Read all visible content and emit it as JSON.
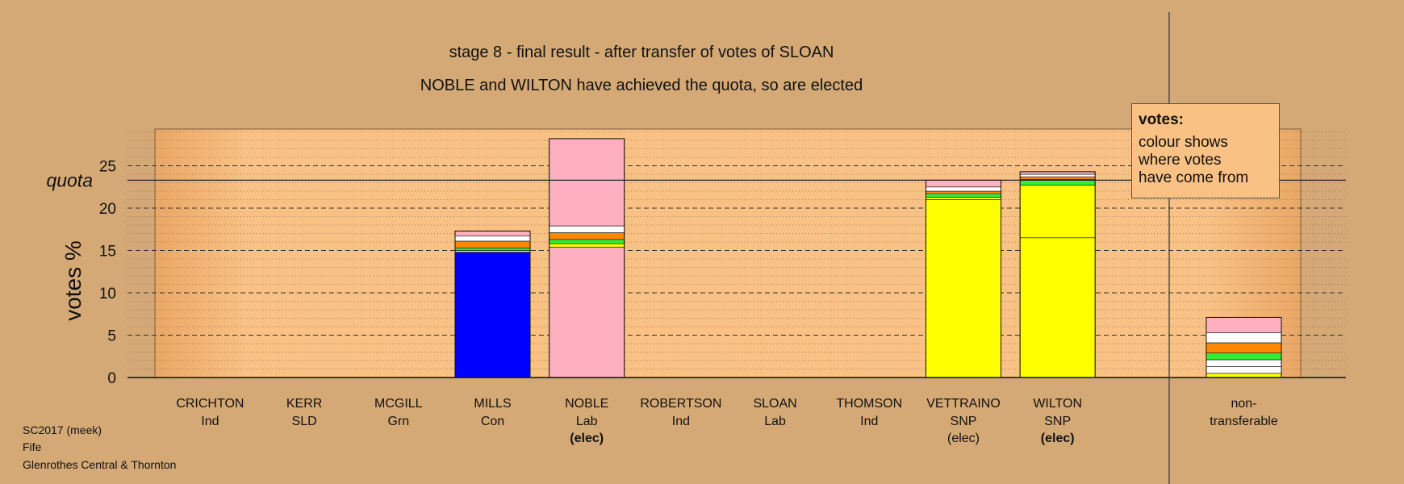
{
  "titles": {
    "line1": "stage 8 - final result - after transfer of votes of SLOAN",
    "line2": "NOBLE and WILTON have achieved the quota, so are elected"
  },
  "legend": {
    "title": "votes:",
    "body": "colour shows\nwhere votes\nhave come from"
  },
  "footer": {
    "line1": "SC2017 (meek)",
    "line2": "Fife",
    "line3": "Glenrothes Central & Thornton"
  },
  "chart_data": {
    "type": "bar",
    "stacked": true,
    "ylabel": "votes %",
    "ylim": [
      0,
      29
    ],
    "yticks": [
      0,
      5,
      10,
      15,
      20,
      25
    ],
    "quota": 23.3,
    "quota_label": "quota",
    "grid": "dashed horizontal",
    "colors": {
      "Con": "#0000FF",
      "Lab": "#FFB0C0",
      "SNP": "#FFFF00",
      "Grn": "#33EE33",
      "Ind": "#FFFFFF",
      "SLD": "#FF8800",
      "other": "#FFFFFF"
    },
    "candidates": [
      {
        "name": "CRICHTON",
        "party": "Ind",
        "status": "",
        "segments": []
      },
      {
        "name": "KERR",
        "party": "SLD",
        "status": "",
        "segments": []
      },
      {
        "name": "MCGILL",
        "party": "Grn",
        "status": "",
        "segments": []
      },
      {
        "name": "MILLS",
        "party": "Con",
        "status": "",
        "segments": [
          {
            "color": "#0000FF",
            "value": 14.8
          },
          {
            "color": "#FFFF00",
            "value": 0.2
          },
          {
            "color": "#33EE33",
            "value": 0.3
          },
          {
            "color": "#FF8800",
            "value": 0.8
          },
          {
            "color": "#FFFFFF",
            "value": 0.6
          },
          {
            "color": "#FFB0C0",
            "value": 0.6
          }
        ]
      },
      {
        "name": "NOBLE",
        "party": "Lab",
        "status": "(elec)",
        "status_bold": true,
        "segments": [
          {
            "color": "#FFB0C0",
            "value": 15.4
          },
          {
            "color": "#FFFF00",
            "value": 0.4
          },
          {
            "color": "#33EE33",
            "value": 0.5
          },
          {
            "color": "#FF8800",
            "value": 0.8
          },
          {
            "color": "#FFFFFF",
            "value": 0.8
          },
          {
            "color": "#FFB0C0",
            "value": 10.3
          }
        ]
      },
      {
        "name": "ROBERTSON",
        "party": "Ind",
        "status": "",
        "segments": []
      },
      {
        "name": "SLOAN",
        "party": "Lab",
        "status": "",
        "segments": []
      },
      {
        "name": "THOMSON",
        "party": "Ind",
        "status": "",
        "segments": []
      },
      {
        "name": "VETTRAINO",
        "party": "SNP",
        "status": "(elec)",
        "status_bold": false,
        "segments": [
          {
            "color": "#FFFF00",
            "value": 21.0
          },
          {
            "color": "#FFFF00",
            "value": 0.3
          },
          {
            "color": "#33EE33",
            "value": 0.4
          },
          {
            "color": "#FF8800",
            "value": 0.3
          },
          {
            "color": "#FFFFFF",
            "value": 0.5
          },
          {
            "color": "#FFB0C0",
            "value": 0.8
          }
        ]
      },
      {
        "name": "WILTON",
        "party": "SNP",
        "status": "(elec)",
        "status_bold": true,
        "segments": [
          {
            "color": "#FFFF00",
            "value": 16.5
          },
          {
            "color": "#FFFF00",
            "value": 6.2
          },
          {
            "color": "#33EE33",
            "value": 0.7
          },
          {
            "color": "#FF8800",
            "value": 0.3
          },
          {
            "color": "#FFFFFF",
            "value": 0.3
          },
          {
            "color": "#FFB0C0",
            "value": 0.3
          }
        ]
      },
      {
        "name": "non-",
        "party": "transferable",
        "status": "",
        "nontransferable": true,
        "segments": [
          {
            "color": "#FFFF00",
            "value": 0.5
          },
          {
            "color": "#FFFFFF",
            "value": 0.8
          },
          {
            "color": "#FFFFFF",
            "value": 0.8
          },
          {
            "color": "#33EE33",
            "value": 0.8
          },
          {
            "color": "#FF8800",
            "value": 1.2
          },
          {
            "color": "#FFFFFF",
            "value": 1.2
          },
          {
            "color": "#FFB0C0",
            "value": 1.8
          }
        ]
      }
    ]
  }
}
